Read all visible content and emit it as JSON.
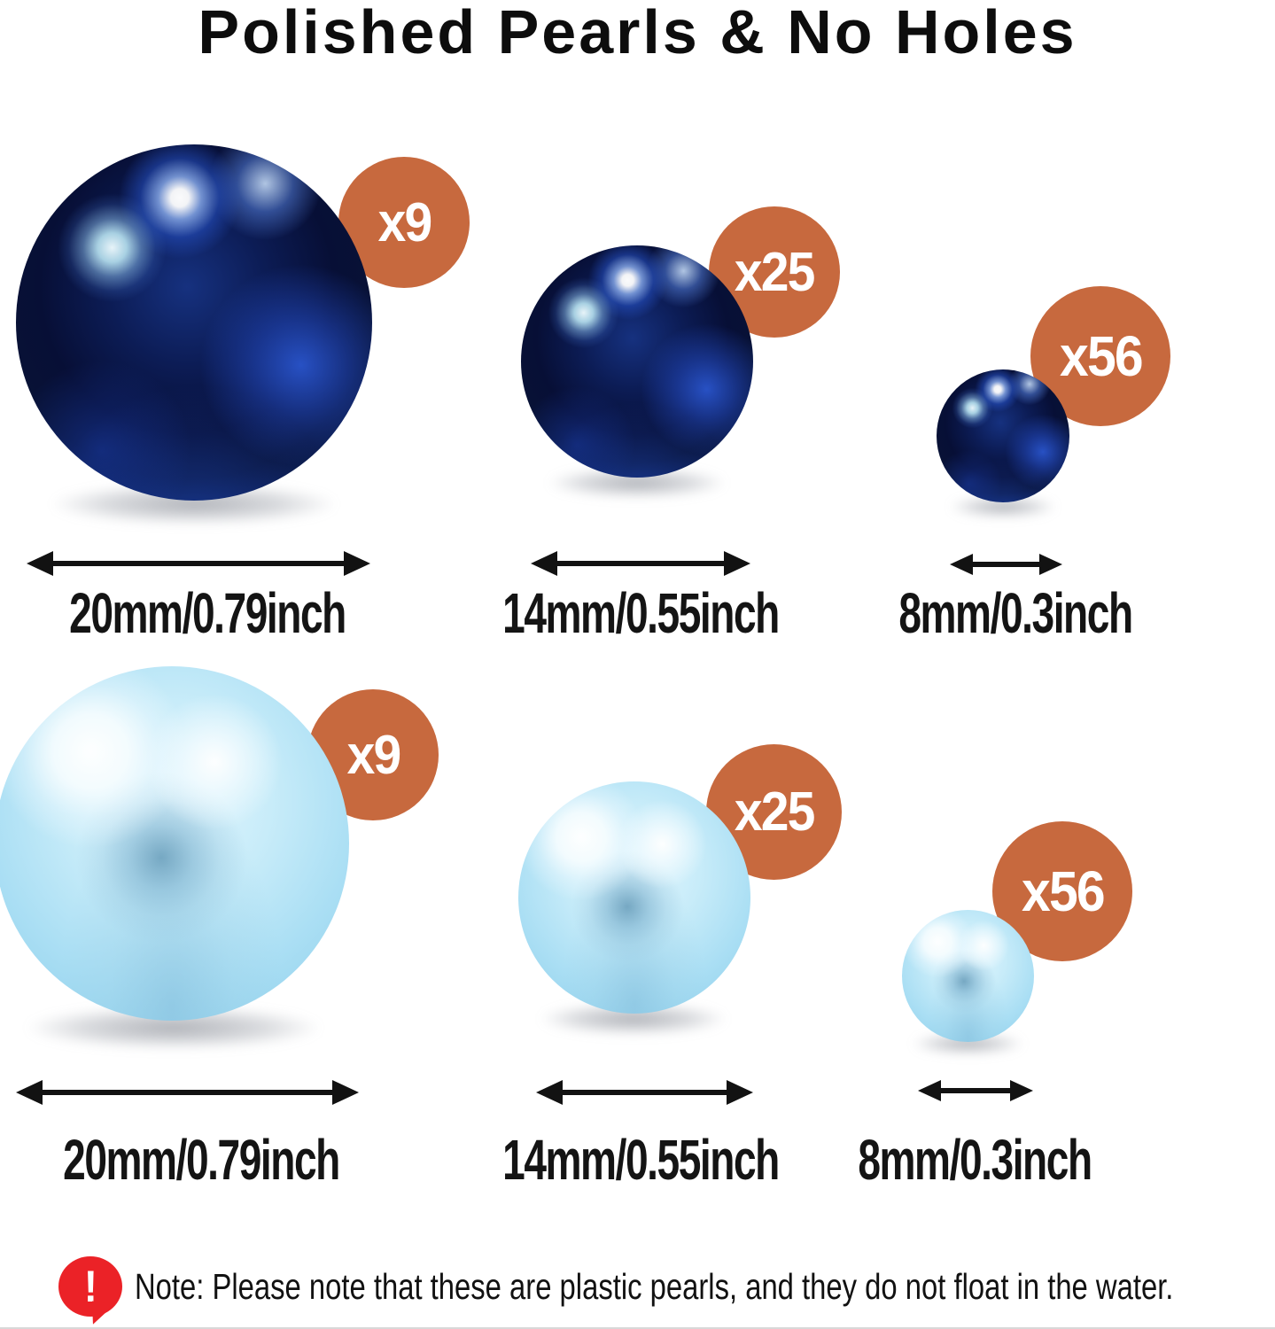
{
  "title": "Polished Pearls & No Holes",
  "colors": {
    "badge_orange": "#C7693E",
    "alert_red": "#EB2227",
    "navy_pearl": "#0A1845",
    "light_blue_pearl": "#A6DCF2",
    "text_black": "#141414",
    "badge_text": "#FFFFFF"
  },
  "rows": [
    {
      "name": "navy-pearls",
      "items": [
        {
          "count_label": "x9",
          "size_label": "20mm/0.79inch"
        },
        {
          "count_label": "x25",
          "size_label": "14mm/0.55inch"
        },
        {
          "count_label": "x56",
          "size_label": "8mm/0.3inch"
        }
      ]
    },
    {
      "name": "light-blue-pearls",
      "items": [
        {
          "count_label": "x9",
          "size_label": "20mm/0.79inch"
        },
        {
          "count_label": "x25",
          "size_label": "14mm/0.55inch"
        },
        {
          "count_label": "x56",
          "size_label": "8mm/0.3inch"
        }
      ]
    }
  ],
  "note": {
    "icon": "!",
    "text": "Note: Please note that these are plastic pearls, and they do not float in the water."
  }
}
